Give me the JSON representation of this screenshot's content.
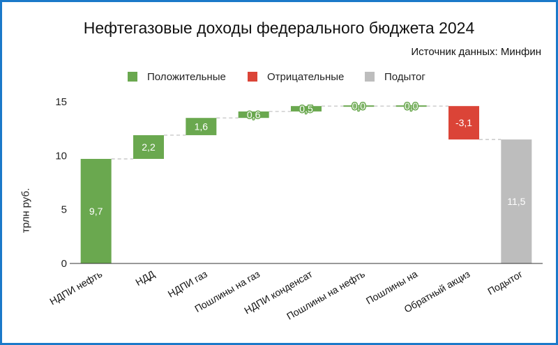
{
  "chart_data": {
    "type": "waterfall",
    "title": "Нефтегазовые доходы федерального бюджета 2024",
    "source_note": "Источник данных: Минфин",
    "ylabel": "трлн руб.",
    "ylim": [
      0,
      15
    ],
    "yticks": [
      "0",
      "5",
      "10",
      "15"
    ],
    "legend": {
      "position": "top",
      "items": [
        {
          "label": "Положительные",
          "color": "#6aa84f"
        },
        {
          "label": "Отрицательные",
          "color": "#db4437"
        },
        {
          "label": "Подытог",
          "color": "#bdbdbd"
        }
      ]
    },
    "categories": [
      "НДПИ нефть",
      "НДД",
      "НДПИ газ",
      "Пошлины на газ",
      "НДПИ конденсат",
      "Пошлины на нефть",
      "Пошлины на",
      "Обратный акциз",
      "Подытог"
    ],
    "values": [
      9.7,
      2.2,
      1.6,
      0.6,
      0.5,
      0.0,
      0.0,
      -3.1,
      11.5
    ],
    "labels": [
      "9,7",
      "2,2",
      "1,6",
      "0,6",
      "0,5",
      "0,0",
      "0,0",
      "-3,1",
      "11,5"
    ],
    "kinds": [
      "positive",
      "positive",
      "positive",
      "positive",
      "positive",
      "positive",
      "positive",
      "negative",
      "subtotal"
    ],
    "grid": false,
    "colors": {
      "positive": "#6aa84f",
      "negative": "#db4437",
      "subtotal": "#bdbdbd",
      "connector": "#bdbdbd"
    }
  }
}
